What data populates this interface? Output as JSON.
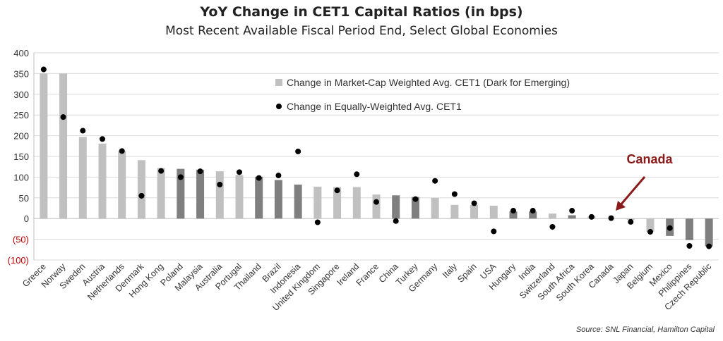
{
  "title": "YoY Change in CET1 Capital Ratios (in bps)",
  "subtitle": "Most Recent Available Fiscal Period End, Select Global Economies",
  "source": "Source: SNL Financial, Hamilton Capital",
  "annotation": {
    "text": "Canada",
    "color": "#8b1a1a"
  },
  "colors": {
    "developed": "#c0c0c0",
    "emerging": "#7f7f7f",
    "dot": "#000000",
    "negative_tick": "#c00000",
    "grid": "#d9d9d9"
  },
  "chart_data": {
    "type": "bar",
    "title": "YoY Change in CET1 Capital Ratios (in bps)",
    "xlabel": "",
    "ylabel": "",
    "ylim": [
      -100,
      400
    ],
    "yticks": [
      400,
      350,
      300,
      250,
      200,
      150,
      100,
      50,
      0,
      -50,
      -100
    ],
    "ytick_labels": [
      "400",
      "350",
      "300",
      "250",
      "200",
      "150",
      "100",
      "50",
      "0",
      "(50)",
      "(100)"
    ],
    "grid": true,
    "legend_position": "top-center",
    "categories": [
      "Greece",
      "Norway",
      "Sweden",
      "Austria",
      "Netherlands",
      "Denmark",
      "Hong Kong",
      "Poland",
      "Malaysia",
      "Australia",
      "Portugal",
      "Thailand",
      "Brazil",
      "Indonesia",
      "United Kingdom",
      "Singapore",
      "Ireland",
      "France",
      "China",
      "Turkey",
      "Germany",
      "Italy",
      "Spain",
      "USA",
      "Hungary",
      "India",
      "Switzerland",
      "South Africa",
      "South Korea",
      "Canada",
      "Japan",
      "Belgium",
      "Mexico",
      "Philippines",
      "Czech Republic"
    ],
    "emerging": [
      false,
      false,
      false,
      false,
      false,
      false,
      false,
      true,
      true,
      false,
      false,
      true,
      true,
      true,
      false,
      false,
      false,
      false,
      true,
      true,
      false,
      false,
      false,
      false,
      true,
      true,
      false,
      true,
      false,
      false,
      false,
      false,
      true,
      true,
      true
    ],
    "series": [
      {
        "name": "Change in Market-Cap Weighted Avg. CET1 (Dark for Emerging)",
        "type": "bar",
        "values": [
          350,
          350,
          197,
          181,
          163,
          141,
          122,
          120,
          118,
          114,
          105,
          101,
          93,
          82,
          77,
          76,
          76,
          58,
          56,
          52,
          50,
          33,
          33,
          31,
          17,
          17,
          12,
          8,
          5,
          0,
          -3,
          -32,
          -42,
          -52,
          -67
        ]
      },
      {
        "name": "Change in Equally-Weighted Avg. CET1",
        "type": "scatter",
        "values": [
          360,
          245,
          212,
          192,
          163,
          55,
          115,
          100,
          114,
          82,
          112,
          98,
          104,
          162,
          -9,
          68,
          107,
          40,
          -6,
          47,
          91,
          59,
          37,
          -31,
          19,
          19,
          -20,
          19,
          4,
          1,
          -8,
          -32,
          -23,
          -66,
          -67
        ]
      }
    ]
  }
}
